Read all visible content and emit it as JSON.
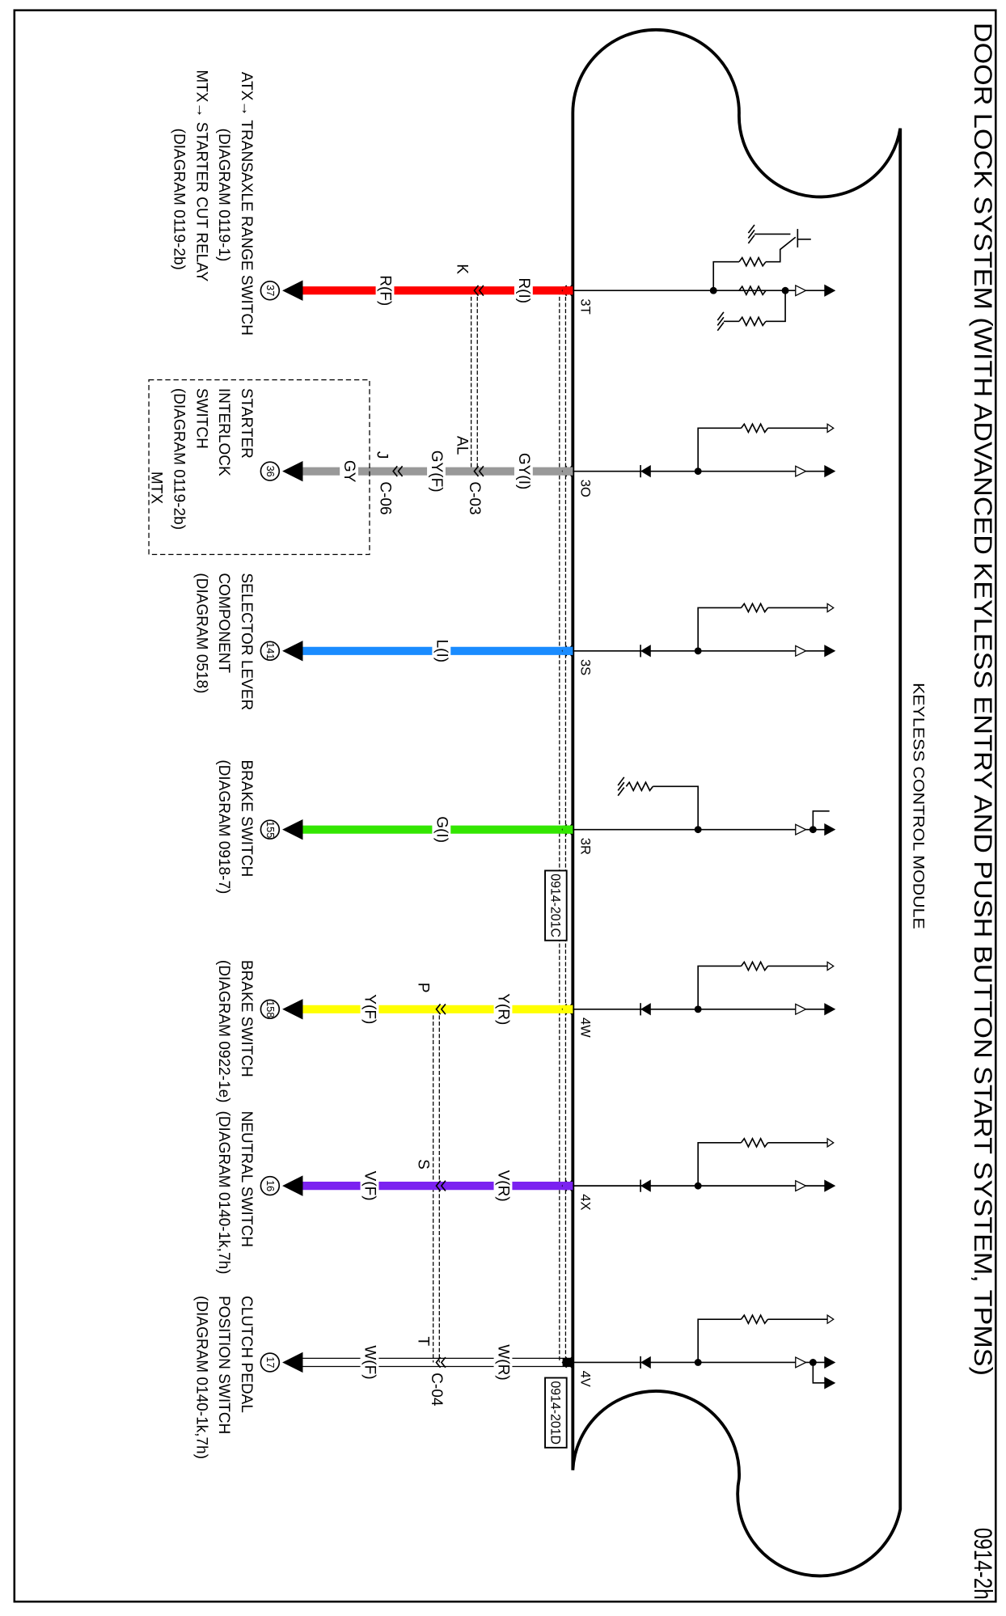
{
  "title": "DOOR LOCK SYSTEM (WITH ADVANCED KEYLESS ENTRY AND PUSH BUTTON START SYSTEM, TPMS)",
  "page_id": "0914-2h",
  "module_label": "KEYLESS CONTROL MODULE",
  "harness_connectors": [
    "0914-201C",
    "0914-201D"
  ],
  "pins": [
    "3T",
    "3O",
    "3S",
    "3R",
    "4W",
    "4X",
    "4V"
  ],
  "wires": [
    {
      "pin": "3T",
      "color": "#ff0000",
      "seg_labels": [
        "R(I)",
        "R(F)"
      ],
      "terminals": [
        "K"
      ],
      "connectors": []
    },
    {
      "pin": "3O",
      "color": "#999999",
      "seg_labels": [
        "GY(I)",
        "GY(F)",
        "GY"
      ],
      "terminals": [
        "AL",
        "J"
      ],
      "connectors": [
        "C-03",
        "C-06"
      ]
    },
    {
      "pin": "3S",
      "color": "#1a8cff",
      "seg_labels": [
        "L(I)"
      ],
      "terminals": [],
      "connectors": []
    },
    {
      "pin": "3R",
      "color": "#33e600",
      "seg_labels": [
        "G(I)"
      ],
      "terminals": [],
      "connectors": []
    },
    {
      "pin": "4W",
      "color": "#ffff00",
      "seg_labels": [
        "Y(R)",
        "Y(F)"
      ],
      "terminals": [
        "P"
      ],
      "connectors": []
    },
    {
      "pin": "4X",
      "color": "#7b22f0",
      "seg_labels": [
        "V(R)",
        "V(F)"
      ],
      "terminals": [
        "S"
      ],
      "connectors": []
    },
    {
      "pin": "4V",
      "color": "#ffffff",
      "seg_labels": [
        "W(R)",
        "W(F)"
      ],
      "terminals": [
        "T"
      ],
      "connectors": [
        "C-04"
      ]
    }
  ],
  "components": [
    {
      "ref": "37",
      "lines": [
        "ATX→ TRANSAXLE RANGE SWITCH",
        "(DIAGRAM 0119-1)",
        "MTX→ STARTER CUT RELAY",
        "(DIAGRAM 0119-2b)"
      ]
    },
    {
      "ref": "36",
      "lines": [
        "STARTER",
        "INTERLOCK",
        "SWITCH",
        "(DIAGRAM 0119-2b)"
      ],
      "group_label": "MTX"
    },
    {
      "ref": "141",
      "lines": [
        "SELECTOR LEVER",
        "COMPONENT",
        "(DIAGRAM 0518)"
      ]
    },
    {
      "ref": "155",
      "lines": [
        "BRAKE SWITCH",
        "(DIAGRAM 0918-7)"
      ]
    },
    {
      "ref": "158",
      "lines": [
        "BRAKE SWITCH",
        "(DIAGRAM 0922-1e)"
      ]
    },
    {
      "ref": "16",
      "lines": [
        "NEUTRAL SWITCH",
        "(DIAGRAM 0140-1k,7h)"
      ]
    },
    {
      "ref": "17",
      "lines": [
        "CLUTCH PEDAL",
        "POSITION SWITCH",
        "(DIAGRAM 0140-1k,7h)"
      ]
    }
  ]
}
